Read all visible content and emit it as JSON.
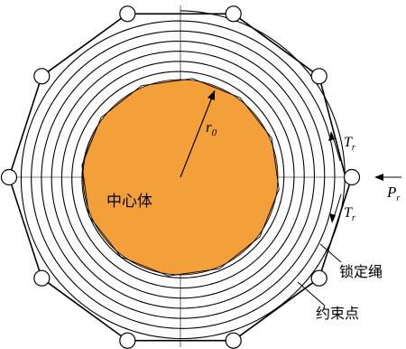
{
  "colors": {
    "core_fill": "#F4A03A",
    "line": "#000000",
    "background": "#ffffff"
  },
  "labels": {
    "central_body": "中心体",
    "radius_main": "r",
    "radius_sub": "0",
    "tension_main": "T",
    "tension_sub": "r",
    "load_main": "P",
    "load_sub": "r",
    "cable": "锁定绳",
    "constraint_point": "约束点"
  }
}
